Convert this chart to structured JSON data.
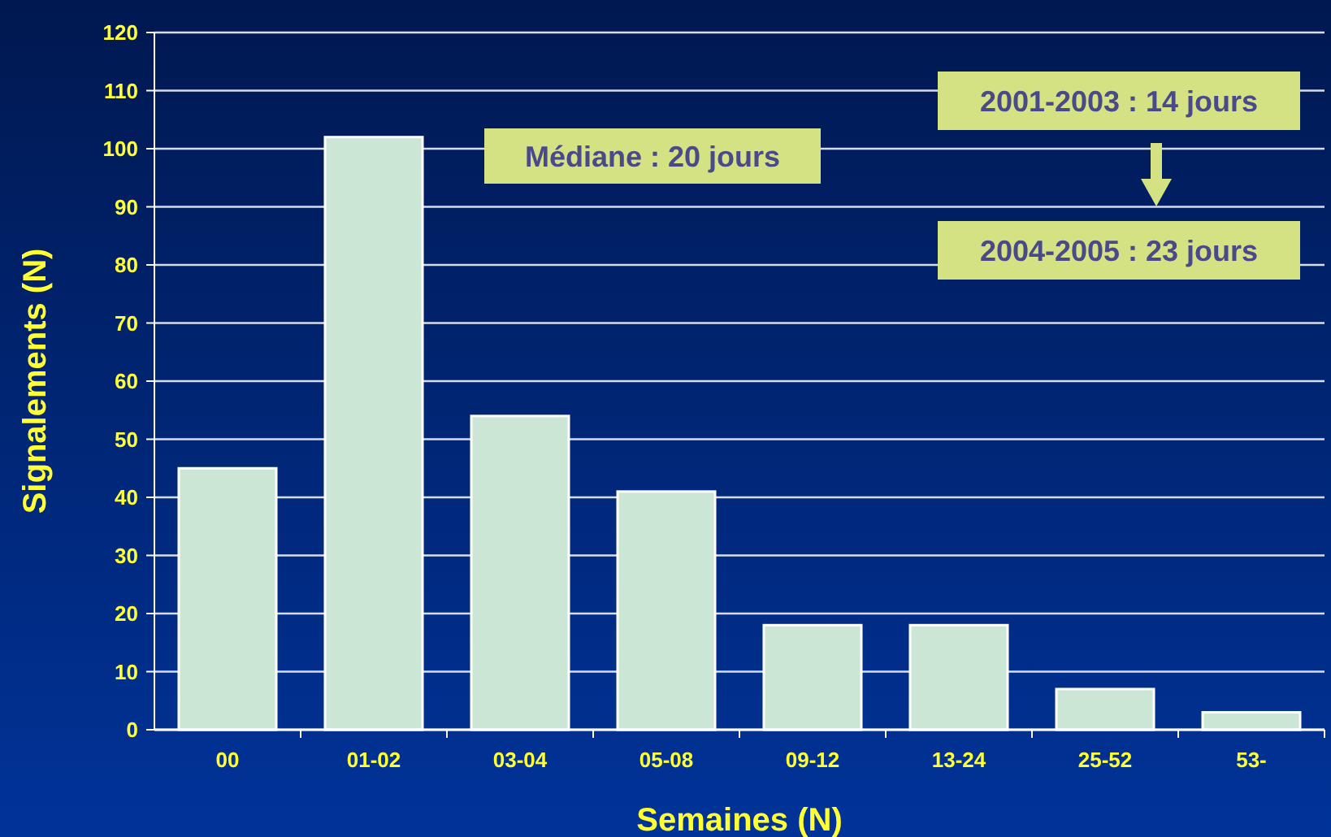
{
  "chart_data": {
    "type": "bar",
    "xlabel": "Semaines (N)",
    "ylabel": "Signalements (N)",
    "categories": [
      "00",
      "01-02",
      "03-04",
      "05-08",
      "09-12",
      "13-24",
      "25-52",
      "53-"
    ],
    "values": [
      45,
      102,
      54,
      41,
      18,
      18,
      7,
      3
    ],
    "color": "#cce6d6",
    "ylim": [
      0,
      120
    ],
    "yticks": [
      0,
      10,
      20,
      30,
      40,
      50,
      60,
      70,
      80,
      90,
      100,
      110,
      120
    ],
    "grid": "y",
    "annotations": [
      "Médiane : 20 jours",
      "2001-2003 : 14 jours",
      "2004-2005 : 23 jours"
    ]
  }
}
